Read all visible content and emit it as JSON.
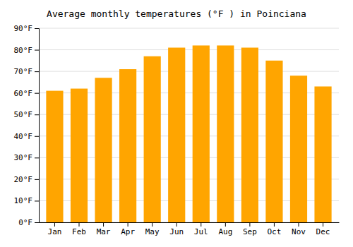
{
  "chart_data": {
    "type": "bar",
    "title": "Average monthly temperatures (°F ) in Poinciana",
    "categories": [
      "Jan",
      "Feb",
      "Mar",
      "Apr",
      "May",
      "Jun",
      "Jul",
      "Aug",
      "Sep",
      "Oct",
      "Nov",
      "Dec"
    ],
    "values": [
      61,
      62,
      67,
      71,
      77,
      81,
      82,
      82,
      81,
      75,
      68,
      63
    ],
    "color": "#FFA500",
    "ylim": [
      0,
      90
    ],
    "yticks": [
      {
        "value": 0,
        "label": "0°F"
      },
      {
        "value": 10,
        "label": "10°F"
      },
      {
        "value": 20,
        "label": "20°F"
      },
      {
        "value": 30,
        "label": "30°F"
      },
      {
        "value": 40,
        "label": "40°F"
      },
      {
        "value": 50,
        "label": "50°F"
      },
      {
        "value": 60,
        "label": "60°F"
      },
      {
        "value": 70,
        "label": "70°F"
      },
      {
        "value": 80,
        "label": "80°F"
      },
      {
        "value": 90,
        "label": "90°F"
      }
    ],
    "grid": true
  }
}
